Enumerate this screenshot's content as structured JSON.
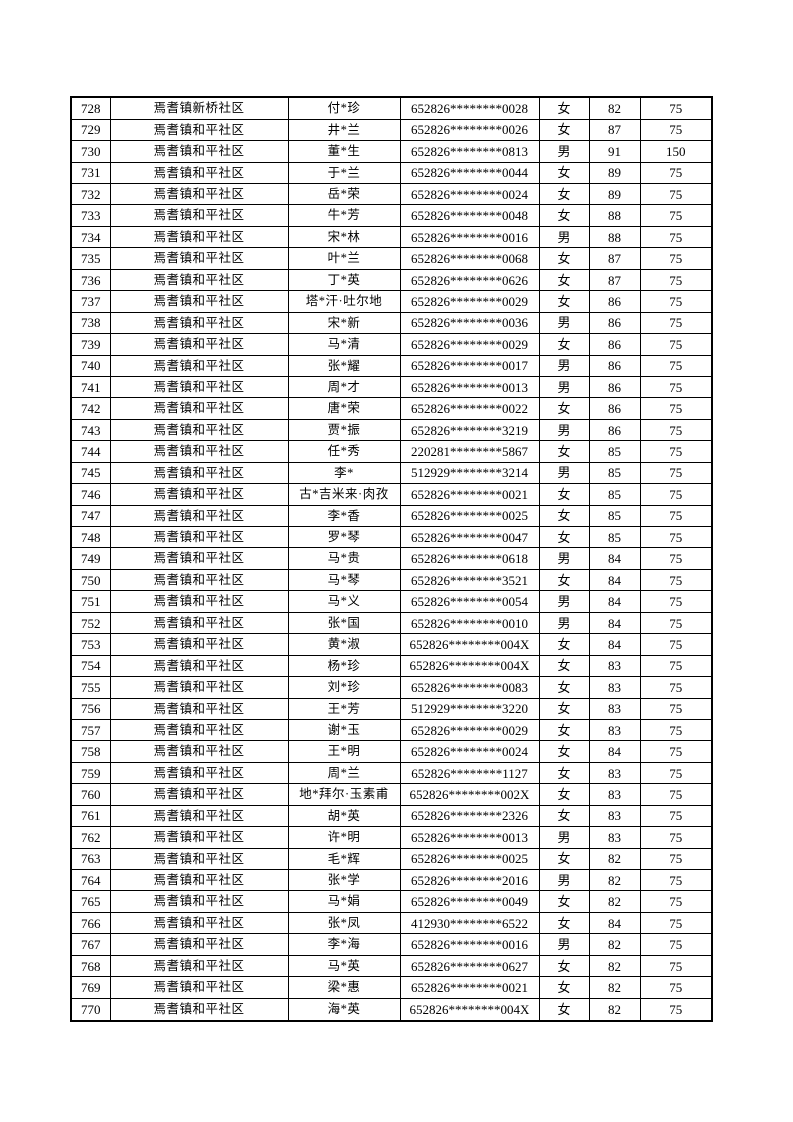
{
  "page": {
    "background_color": "#ffffff",
    "text_color": "#000000",
    "border_color": "#000000"
  },
  "table": {
    "rows": [
      [
        728,
        "焉耆镇新桥社区",
        "付*珍",
        "652826********0028",
        "女",
        82,
        75
      ],
      [
        729,
        "焉耆镇和平社区",
        "井*兰",
        "652826********0026",
        "女",
        87,
        75
      ],
      [
        730,
        "焉耆镇和平社区",
        "董*生",
        "652826********0813",
        "男",
        91,
        150
      ],
      [
        731,
        "焉耆镇和平社区",
        "于*兰",
        "652826********0044",
        "女",
        89,
        75
      ],
      [
        732,
        "焉耆镇和平社区",
        "岳*荣",
        "652826********0024",
        "女",
        89,
        75
      ],
      [
        733,
        "焉耆镇和平社区",
        "牛*芳",
        "652826********0048",
        "女",
        88,
        75
      ],
      [
        734,
        "焉耆镇和平社区",
        "宋*林",
        "652826********0016",
        "男",
        88,
        75
      ],
      [
        735,
        "焉耆镇和平社区",
        "叶*兰",
        "652826********0068",
        "女",
        87,
        75
      ],
      [
        736,
        "焉耆镇和平社区",
        "丁*英",
        "652826********0626",
        "女",
        87,
        75
      ],
      [
        737,
        "焉耆镇和平社区",
        "塔*汗·吐尔地",
        "652826********0029",
        "女",
        86,
        75
      ],
      [
        738,
        "焉耆镇和平社区",
        "宋*新",
        "652826********0036",
        "男",
        86,
        75
      ],
      [
        739,
        "焉耆镇和平社区",
        "马*清",
        "652826********0029",
        "女",
        86,
        75
      ],
      [
        740,
        "焉耆镇和平社区",
        "张*耀",
        "652826********0017",
        "男",
        86,
        75
      ],
      [
        741,
        "焉耆镇和平社区",
        "周*才",
        "652826********0013",
        "男",
        86,
        75
      ],
      [
        742,
        "焉耆镇和平社区",
        "唐*荣",
        "652826********0022",
        "女",
        86,
        75
      ],
      [
        743,
        "焉耆镇和平社区",
        "贾*振",
        "652826********3219",
        "男",
        86,
        75
      ],
      [
        744,
        "焉耆镇和平社区",
        "任*秀",
        "220281********5867",
        "女",
        85,
        75
      ],
      [
        745,
        "焉耆镇和平社区",
        "李*",
        "512929********3214",
        "男",
        85,
        75
      ],
      [
        746,
        "焉耆镇和平社区",
        "古*吉米来·肉孜",
        "652826********0021",
        "女",
        85,
        75
      ],
      [
        747,
        "焉耆镇和平社区",
        "李*香",
        "652826********0025",
        "女",
        85,
        75
      ],
      [
        748,
        "焉耆镇和平社区",
        "罗*琴",
        "652826********0047",
        "女",
        85,
        75
      ],
      [
        749,
        "焉耆镇和平社区",
        "马*贵",
        "652826********0618",
        "男",
        84,
        75
      ],
      [
        750,
        "焉耆镇和平社区",
        "马*琴",
        "652826********3521",
        "女",
        84,
        75
      ],
      [
        751,
        "焉耆镇和平社区",
        "马*义",
        "652826********0054",
        "男",
        84,
        75
      ],
      [
        752,
        "焉耆镇和平社区",
        "张*国",
        "652826********0010",
        "男",
        84,
        75
      ],
      [
        753,
        "焉耆镇和平社区",
        "黄*淑",
        "652826********004X",
        "女",
        84,
        75
      ],
      [
        754,
        "焉耆镇和平社区",
        "杨*珍",
        "652826********004X",
        "女",
        83,
        75
      ],
      [
        755,
        "焉耆镇和平社区",
        "刘*珍",
        "652826********0083",
        "女",
        83,
        75
      ],
      [
        756,
        "焉耆镇和平社区",
        "王*芳",
        "512929********3220",
        "女",
        83,
        75
      ],
      [
        757,
        "焉耆镇和平社区",
        "谢*玉",
        "652826********0029",
        "女",
        83,
        75
      ],
      [
        758,
        "焉耆镇和平社区",
        "王*明",
        "652826********0024",
        "女",
        84,
        75
      ],
      [
        759,
        "焉耆镇和平社区",
        "周*兰",
        "652826********1127",
        "女",
        83,
        75
      ],
      [
        760,
        "焉耆镇和平社区",
        "地*拜尔·玉素甫",
        "652826********002X",
        "女",
        83,
        75
      ],
      [
        761,
        "焉耆镇和平社区",
        "胡*英",
        "652826********2326",
        "女",
        83,
        75
      ],
      [
        762,
        "焉耆镇和平社区",
        "许*明",
        "652826********0013",
        "男",
        83,
        75
      ],
      [
        763,
        "焉耆镇和平社区",
        "毛*辉",
        "652826********0025",
        "女",
        82,
        75
      ],
      [
        764,
        "焉耆镇和平社区",
        "张*学",
        "652826********2016",
        "男",
        82,
        75
      ],
      [
        765,
        "焉耆镇和平社区",
        "马*娟",
        "652826********0049",
        "女",
        82,
        75
      ],
      [
        766,
        "焉耆镇和平社区",
        "张*凤",
        "412930********6522",
        "女",
        84,
        75
      ],
      [
        767,
        "焉耆镇和平社区",
        "李*海",
        "652826********0016",
        "男",
        82,
        75
      ],
      [
        768,
        "焉耆镇和平社区",
        "马*英",
        "652826********0627",
        "女",
        82,
        75
      ],
      [
        769,
        "焉耆镇和平社区",
        "梁*惠",
        "652826********0021",
        "女",
        82,
        75
      ],
      [
        770,
        "焉耆镇和平社区",
        "海*英",
        "652826********004X",
        "女",
        82,
        75
      ]
    ]
  }
}
